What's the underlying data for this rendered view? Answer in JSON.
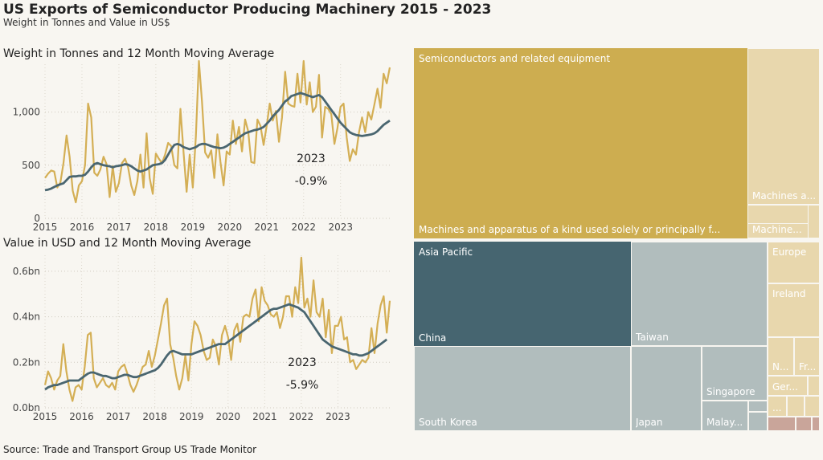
{
  "header": {
    "title": "US Exports of Semiconductor Producing Machinery 2015 - 2023",
    "subtitle": "Weight in Tonnes and Value in US$"
  },
  "footer": {
    "source": "Source: Trade and Transport Group US Trade Monitor"
  },
  "colors": {
    "raw": "#d4af55",
    "avg": "#4a6670",
    "gold": "#cdad50",
    "pale_gold": "#e8d7ad",
    "teal": "#466570",
    "grey": "#b1bdbd",
    "rose": "#c9a59a"
  },
  "chart_data": [
    {
      "type": "line",
      "title": "Weight in Tonnes and 12 Month Moving Average",
      "x_labels": [
        "2015",
        "2016",
        "2017",
        "2018",
        "2019",
        "2020",
        "2021",
        "2022",
        "2023"
      ],
      "yticks": [
        "0",
        "500",
        "1,000"
      ],
      "ylim": [
        0,
        1450
      ],
      "grid": true,
      "annotation": {
        "year": "2023",
        "change": "-0.9%"
      },
      "series": [
        {
          "key": "monthly",
          "values": [
            380,
            420,
            450,
            440,
            290,
            340,
            520,
            780,
            580,
            260,
            150,
            310,
            350,
            500,
            1080,
            950,
            430,
            400,
            460,
            580,
            510,
            200,
            490,
            250,
            330,
            520,
            560,
            480,
            310,
            220,
            350,
            600,
            290,
            800,
            380,
            230,
            610,
            560,
            520,
            600,
            710,
            680,
            500,
            470,
            1030,
            620,
            250,
            600,
            290,
            770,
            1480,
            1100,
            620,
            570,
            640,
            380,
            790,
            530,
            310,
            630,
            600,
            920,
            700,
            860,
            630,
            930,
            820,
            530,
            520,
            930,
            870,
            690,
            870,
            1080,
            920,
            1010,
            720,
            950,
            1380,
            1080,
            1060,
            1050,
            1360,
            1090,
            1480,
            1070,
            1280,
            1000,
            1050,
            1350,
            760,
            1050,
            1030,
            980,
            700,
            850,
            1050,
            1080,
            760,
            540,
            650,
            600,
            810,
            950,
            810,
            1000,
            930,
            1070,
            1220,
            1040,
            1360,
            1270,
            1420
          ]
        },
        {
          "key": "12-month average",
          "values": [
            265,
            270,
            280,
            295,
            310,
            320,
            330,
            360,
            390,
            395,
            395,
            400,
            400,
            410,
            440,
            480,
            510,
            520,
            510,
            500,
            495,
            490,
            480,
            490,
            495,
            500,
            510,
            505,
            490,
            470,
            450,
            440,
            450,
            460,
            480,
            500,
            505,
            510,
            520,
            550,
            600,
            650,
            690,
            700,
            690,
            670,
            660,
            650,
            660,
            670,
            690,
            700,
            700,
            690,
            680,
            670,
            665,
            660,
            665,
            680,
            700,
            720,
            740,
            760,
            780,
            800,
            810,
            820,
            830,
            835,
            845,
            860,
            890,
            920,
            960,
            990,
            1020,
            1060,
            1100,
            1120,
            1150,
            1160,
            1170,
            1180,
            1170,
            1160,
            1150,
            1140,
            1150,
            1160,
            1140,
            1100,
            1060,
            1020,
            980,
            940,
            900,
            870,
            840,
            810,
            795,
            785,
            780,
            775,
            780,
            785,
            790,
            800,
            820,
            850,
            880,
            900,
            920
          ]
        }
      ]
    },
    {
      "type": "line",
      "title": "Value in USD and 12 Month Moving Average",
      "x_labels": [
        "2015",
        "2016",
        "2017",
        "2018",
        "2019",
        "2020",
        "2021",
        "2022",
        "2023"
      ],
      "yticks": [
        "0.0bn",
        "0.2bn",
        "0.4bn",
        "0.6bn"
      ],
      "ylim": [
        0,
        0.67
      ],
      "grid": true,
      "annotation": {
        "year": "2023",
        "change": "-5.9%"
      },
      "series": [
        {
          "key": "monthly",
          "values": [
            0.1,
            0.16,
            0.13,
            0.08,
            0.12,
            0.14,
            0.28,
            0.16,
            0.08,
            0.03,
            0.09,
            0.1,
            0.08,
            0.18,
            0.32,
            0.33,
            0.13,
            0.09,
            0.11,
            0.13,
            0.1,
            0.09,
            0.11,
            0.08,
            0.16,
            0.18,
            0.19,
            0.15,
            0.1,
            0.07,
            0.1,
            0.14,
            0.18,
            0.19,
            0.25,
            0.18,
            0.23,
            0.3,
            0.37,
            0.45,
            0.48,
            0.28,
            0.22,
            0.14,
            0.08,
            0.13,
            0.23,
            0.12,
            0.28,
            0.38,
            0.36,
            0.32,
            0.25,
            0.21,
            0.22,
            0.3,
            0.27,
            0.19,
            0.32,
            0.36,
            0.31,
            0.21,
            0.34,
            0.37,
            0.29,
            0.4,
            0.41,
            0.4,
            0.48,
            0.52,
            0.38,
            0.53,
            0.47,
            0.45,
            0.41,
            0.4,
            0.42,
            0.35,
            0.4,
            0.49,
            0.49,
            0.4,
            0.53,
            0.46,
            0.66,
            0.44,
            0.48,
            0.4,
            0.56,
            0.42,
            0.4,
            0.48,
            0.31,
            0.43,
            0.24,
            0.36,
            0.36,
            0.4,
            0.3,
            0.31,
            0.2,
            0.21,
            0.17,
            0.19,
            0.21,
            0.2,
            0.22,
            0.35,
            0.24,
            0.37,
            0.45,
            0.49,
            0.33,
            0.47
          ]
        },
        {
          "key": "12-month average",
          "values": [
            0.08,
            0.09,
            0.095,
            0.1,
            0.1,
            0.105,
            0.11,
            0.115,
            0.12,
            0.12,
            0.12,
            0.12,
            0.13,
            0.14,
            0.15,
            0.155,
            0.155,
            0.15,
            0.145,
            0.14,
            0.14,
            0.135,
            0.13,
            0.13,
            0.135,
            0.14,
            0.145,
            0.145,
            0.14,
            0.135,
            0.135,
            0.14,
            0.145,
            0.15,
            0.155,
            0.16,
            0.165,
            0.175,
            0.19,
            0.21,
            0.23,
            0.245,
            0.25,
            0.245,
            0.24,
            0.235,
            0.235,
            0.235,
            0.235,
            0.24,
            0.245,
            0.25,
            0.255,
            0.26,
            0.265,
            0.27,
            0.275,
            0.28,
            0.28,
            0.28,
            0.29,
            0.3,
            0.31,
            0.32,
            0.33,
            0.34,
            0.35,
            0.36,
            0.37,
            0.38,
            0.39,
            0.4,
            0.41,
            0.42,
            0.43,
            0.435,
            0.435,
            0.44,
            0.445,
            0.45,
            0.455,
            0.45,
            0.445,
            0.44,
            0.43,
            0.42,
            0.4,
            0.38,
            0.36,
            0.34,
            0.32,
            0.3,
            0.29,
            0.28,
            0.27,
            0.265,
            0.26,
            0.255,
            0.25,
            0.245,
            0.24,
            0.235,
            0.235,
            0.23,
            0.23,
            0.235,
            0.24,
            0.25,
            0.26,
            0.27,
            0.28,
            0.29,
            0.3
          ]
        }
      ]
    }
  ],
  "treemaps": {
    "top": {
      "items": [
        {
          "id": "semiconductors",
          "label": "Semiconductors and related equipment",
          "color": "#cdad50"
        },
        {
          "id": "machines-apparatus",
          "label": "Machines and apparatus of a kind used solely or principally f...",
          "color": "#cdad50"
        },
        {
          "id": "machines-a",
          "label": "Machines a...",
          "color": "#e8d7ad"
        },
        {
          "id": "machine",
          "label": "Machine...",
          "color": "#e8d7ad"
        }
      ]
    },
    "bottom": {
      "items": [
        {
          "id": "asia-pacific",
          "label": "Asia Pacific",
          "color": "#466570"
        },
        {
          "id": "china",
          "label": "China",
          "color": "#466570"
        },
        {
          "id": "taiwan",
          "label": "Taiwan",
          "color": "#b1bdbd"
        },
        {
          "id": "south-korea",
          "label": "South Korea",
          "color": "#b1bdbd"
        },
        {
          "id": "japan",
          "label": "Japan",
          "color": "#b1bdbd"
        },
        {
          "id": "singapore",
          "label": "Singapore",
          "color": "#b1bdbd"
        },
        {
          "id": "malaysia",
          "label": "Malay...",
          "color": "#b1bdbd"
        },
        {
          "id": "europe",
          "label": "Europe",
          "color": "#e8d7ad"
        },
        {
          "id": "ireland",
          "label": "Ireland",
          "color": "#e8d7ad"
        },
        {
          "id": "n",
          "label": "N...",
          "color": "#e8d7ad"
        },
        {
          "id": "fr",
          "label": "Fr...",
          "color": "#e8d7ad"
        },
        {
          "id": "germany",
          "label": "Ger...",
          "color": "#e8d7ad"
        },
        {
          "id": "dots",
          "label": "...",
          "color": "#e8d7ad"
        }
      ]
    }
  }
}
